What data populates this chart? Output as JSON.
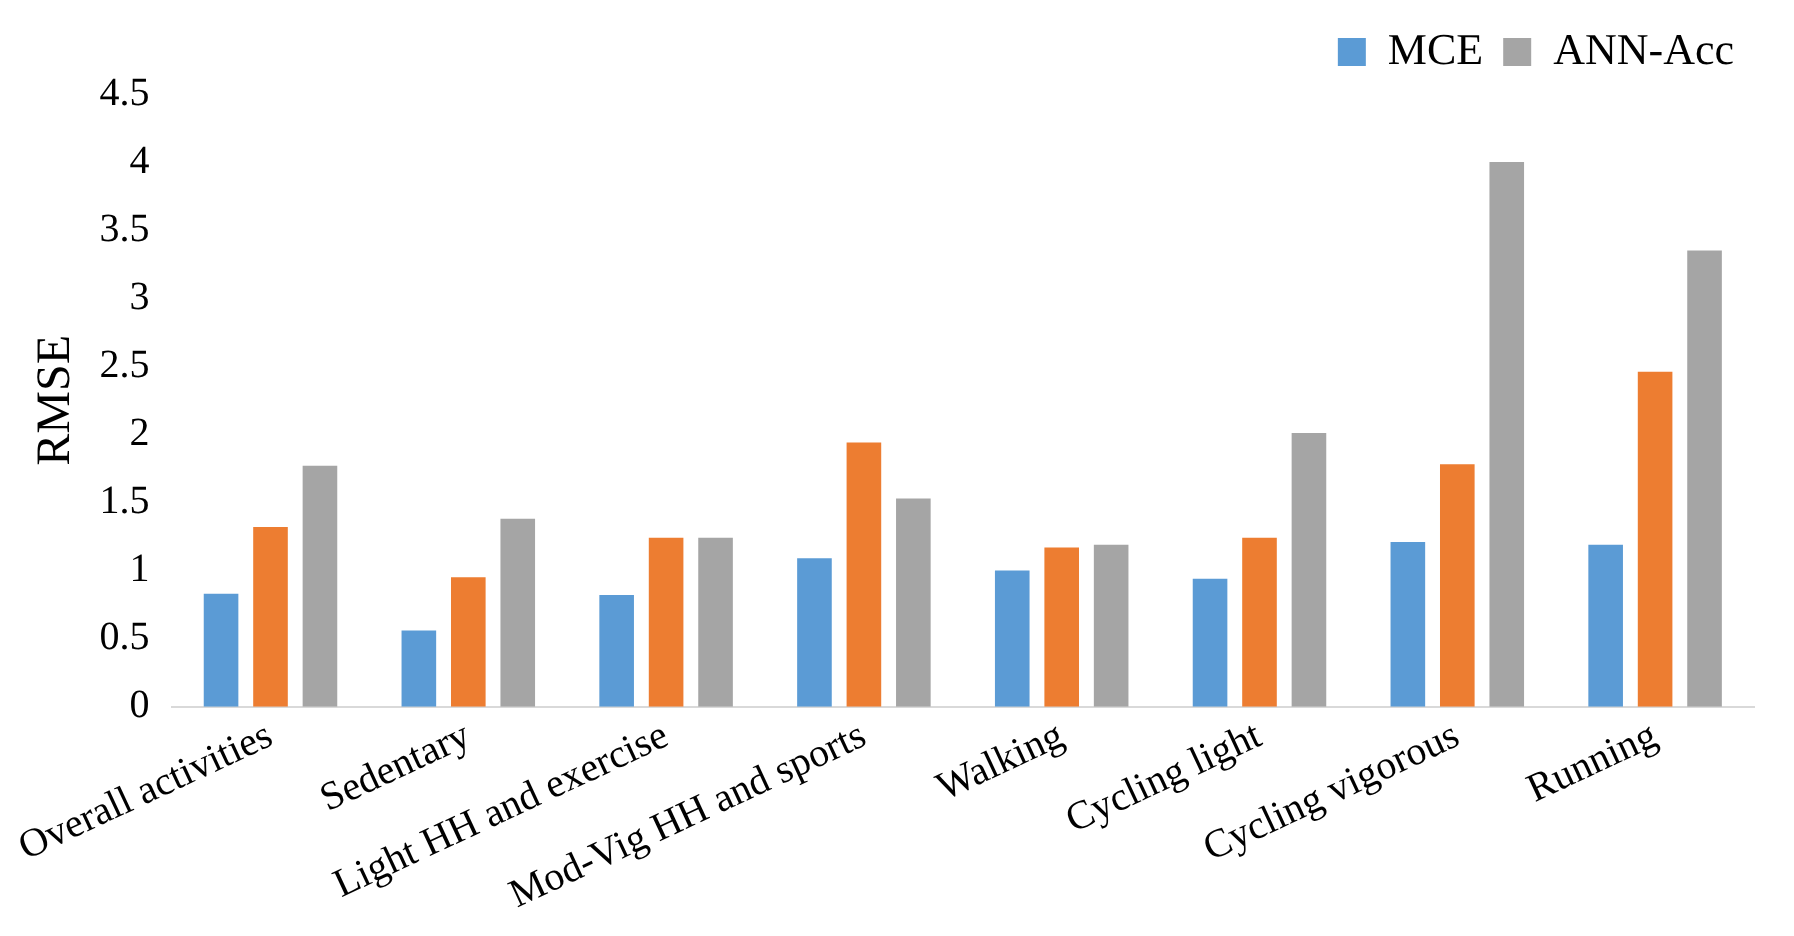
{
  "chart_data": {
    "type": "bar",
    "ylabel": "RMSE",
    "categories": [
      "Overall activities",
      "Sedentary",
      "Light HH and exercise",
      "Mod-Vig HH and sports",
      "Walking",
      "Cycling light",
      "Cycling vigorous",
      "Running"
    ],
    "series": [
      {
        "name": "MCE",
        "color": "#5b9bd5",
        "values": [
          0.83,
          0.56,
          0.82,
          1.09,
          1.0,
          0.94,
          1.21,
          1.19
        ]
      },
      {
        "color": "#ed7d31",
        "values": [
          1.32,
          0.95,
          1.24,
          1.94,
          1.17,
          1.24,
          1.78,
          2.46
        ]
      },
      {
        "name": "ANN-Acc",
        "color": "#a5a5a5",
        "values": [
          1.77,
          1.38,
          1.24,
          1.53,
          1.19,
          2.01,
          4.0,
          3.35
        ]
      }
    ],
    "ylim": [
      0,
      4.5
    ],
    "yticks": [
      0,
      0.5,
      1,
      1.5,
      2,
      2.5,
      3,
      3.5,
      4,
      4.5
    ],
    "grid": false,
    "legend": "top right"
  }
}
